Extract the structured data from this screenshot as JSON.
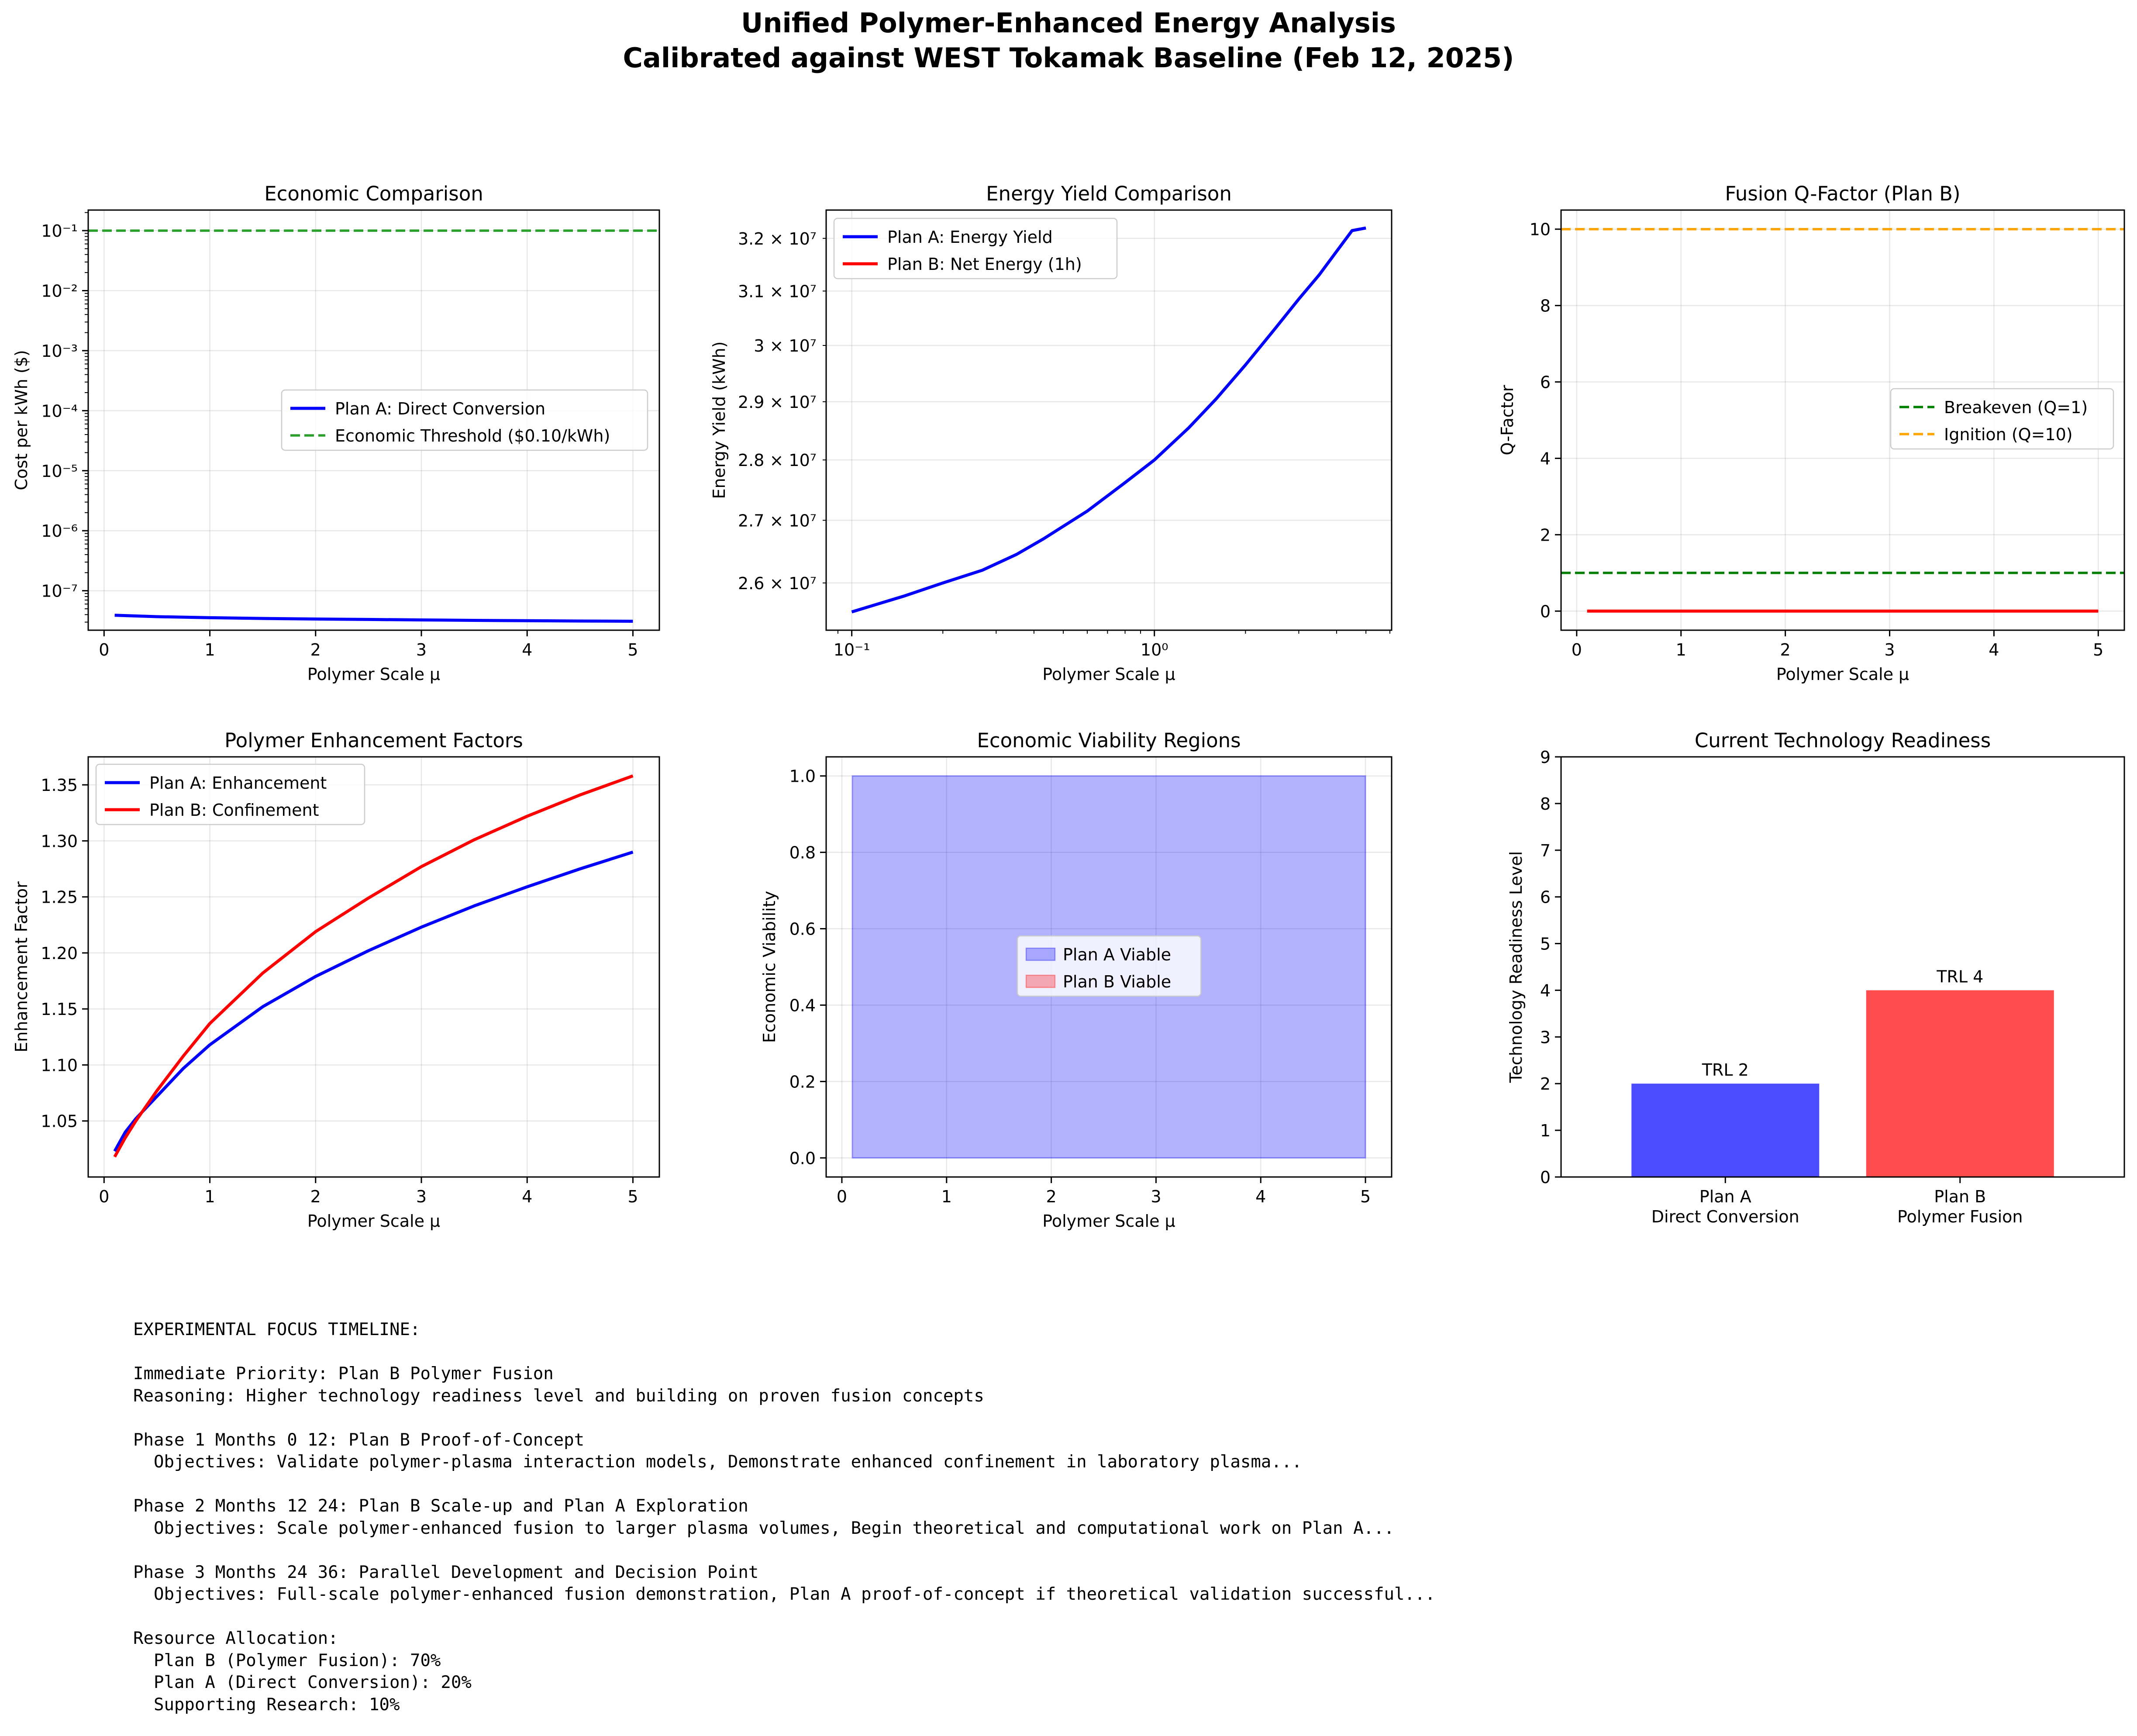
{
  "figure": {
    "title_line1": "Unified Polymer-Enhanced Energy Analysis",
    "title_line2": "Calibrated against WEST Tokamak Baseline (Feb 12, 2025)"
  },
  "colors": {
    "blue": "#0000ff",
    "red": "#ff0000",
    "green": "#008000",
    "green_threshold": "#2ca02c",
    "orange": "#ffa500"
  },
  "chart_data": [
    {
      "id": "economic",
      "type": "line",
      "title": "Economic Comparison",
      "xlabel": "Polymer Scale μ",
      "ylabel": "Cost per kWh ($)",
      "yscale": "log",
      "xlim": [
        -0.15,
        5.25
      ],
      "ylim": [
        2.2e-08,
        0.22
      ],
      "xticks": [
        0,
        1,
        2,
        3,
        4,
        5
      ],
      "yticks": [
        -7,
        -6,
        -5,
        -4,
        -3,
        -2,
        -1
      ],
      "grid": true,
      "legend": "center-right",
      "series": [
        {
          "name": "Plan A: Direct Conversion",
          "color": "#0000ff",
          "style": "solid",
          "x": [
            0.1,
            0.5,
            1,
            1.5,
            2,
            2.5,
            3,
            3.5,
            4,
            4.5,
            5
          ],
          "y": [
            3.9e-08,
            3.7e-08,
            3.55e-08,
            3.45e-08,
            3.38e-08,
            3.32e-08,
            3.26e-08,
            3.21e-08,
            3.17e-08,
            3.13e-08,
            3.1e-08
          ]
        },
        {
          "name": "Economic Threshold ($0.10/kWh)",
          "color": "#2ca02c",
          "style": "dashed",
          "x": [
            -0.15,
            5.25
          ],
          "y": [
            0.1,
            0.1
          ]
        }
      ]
    },
    {
      "id": "energy",
      "type": "line",
      "title": "Energy Yield Comparison",
      "xlabel": "Polymer Scale μ",
      "ylabel": "Energy Yield (kWh)",
      "xscale": "log",
      "yscale": "log",
      "xlim": [
        0.0823,
        6.08
      ],
      "ylim": [
        25270000.0,
        32550000.0
      ],
      "xticks": [
        -1,
        0
      ],
      "yticks": [
        2.6,
        2.7,
        2.8,
        2.9,
        3.0,
        3.1,
        3.2
      ],
      "grid": true,
      "legend": "top-left",
      "series": [
        {
          "name": "Plan A: Energy Yield",
          "color": "#0000ff",
          "style": "solid",
          "x": [
            0.1,
            0.15,
            0.2,
            0.27,
            0.35,
            0.43,
            0.6,
            0.8,
            1.0,
            1.3,
            1.6,
            2.0,
            2.5,
            3.0,
            3.5,
            4.0,
            4.5,
            5.0
          ],
          "y": [
            25550000.0,
            25800000.0,
            26000000.0,
            26200000.0,
            26450000.0,
            26700000.0,
            27150000.0,
            27620000.0,
            28000000.0,
            28550000.0,
            29050000.0,
            29650000.0,
            30300000.0,
            30850000.0,
            31300000.0,
            31750000.0,
            32150000.0,
            32200000.0
          ]
        },
        {
          "name": "Plan B: Net Energy (1h)",
          "color": "#ff0000",
          "style": "solid",
          "x": [],
          "y": []
        }
      ]
    },
    {
      "id": "qfactor",
      "type": "line",
      "title": "Fusion Q-Factor (Plan B)",
      "xlabel": "Polymer Scale μ",
      "ylabel": "Q-Factor",
      "xlim": [
        -0.15,
        5.25
      ],
      "ylim": [
        -0.5,
        10.5
      ],
      "xticks": [
        0,
        1,
        2,
        3,
        4,
        5
      ],
      "yticks": [
        0,
        2,
        4,
        6,
        8,
        10
      ],
      "grid": true,
      "legend": "center-right",
      "series": [
        {
          "name": "Breakeven (Q=1)",
          "color": "#008000",
          "style": "dashed",
          "x": [
            -0.15,
            5.25
          ],
          "y": [
            1,
            1
          ]
        },
        {
          "name": "Ignition (Q=10)",
          "color": "#ffa500",
          "style": "dashed",
          "x": [
            -0.15,
            5.25
          ],
          "y": [
            10,
            10
          ]
        },
        {
          "name": "",
          "color": "#ff0000",
          "style": "solid",
          "x": [
            0.1,
            5.0
          ],
          "y": [
            0,
            0
          ]
        }
      ]
    },
    {
      "id": "enhancement",
      "type": "line",
      "title": "Polymer Enhancement Factors",
      "xlabel": "Polymer Scale μ",
      "ylabel": "Enhancement Factor",
      "xlim": [
        -0.15,
        5.25
      ],
      "ylim": [
        1.0,
        1.375
      ],
      "xticks": [
        0,
        1,
        2,
        3,
        4,
        5
      ],
      "yticks": [
        1.05,
        1.1,
        1.15,
        1.2,
        1.25,
        1.3,
        1.35
      ],
      "grid": true,
      "legend": "top-left",
      "series": [
        {
          "name": "Plan A: Enhancement",
          "color": "#0000ff",
          "style": "solid",
          "x": [
            0.1,
            0.2,
            0.3,
            0.5,
            0.75,
            1.0,
            1.5,
            2.0,
            2.5,
            3.0,
            3.5,
            4.0,
            4.5,
            5.0
          ],
          "y": [
            1.023,
            1.04,
            1.052,
            1.072,
            1.097,
            1.118,
            1.152,
            1.179,
            1.202,
            1.223,
            1.242,
            1.259,
            1.275,
            1.29
          ]
        },
        {
          "name": "Plan B: Confinement",
          "color": "#ff0000",
          "style": "solid",
          "x": [
            0.1,
            0.2,
            0.3,
            0.5,
            0.75,
            1.0,
            1.5,
            2.0,
            2.5,
            3.0,
            3.5,
            4.0,
            4.5,
            5.0
          ],
          "y": [
            1.018,
            1.035,
            1.05,
            1.077,
            1.108,
            1.137,
            1.182,
            1.219,
            1.249,
            1.277,
            1.301,
            1.322,
            1.341,
            1.358
          ]
        }
      ]
    },
    {
      "id": "viability",
      "type": "area",
      "title": "Economic Viability Regions",
      "xlabel": "Polymer Scale μ",
      "ylabel": "Economic Viability",
      "xlim": [
        -0.15,
        5.25
      ],
      "ylim": [
        -0.05,
        1.05
      ],
      "xticks": [
        0,
        1,
        2,
        3,
        4,
        5
      ],
      "yticks": [
        0.0,
        0.2,
        0.4,
        0.6,
        0.8,
        1.0
      ],
      "grid": true,
      "legend": "center",
      "series": [
        {
          "name": "Plan A Viable",
          "color": "#0000ff",
          "x": [
            0.1,
            5.0
          ],
          "y": [
            1.0,
            1.0
          ]
        },
        {
          "name": "Plan B Viable",
          "color": "#ff0000",
          "x": [
            0.1,
            5.0
          ],
          "y": [
            0.0,
            0.0
          ]
        }
      ]
    },
    {
      "id": "trl",
      "type": "bar",
      "title": "Current Technology Readiness",
      "ylabel": "Technology Readiness Level",
      "ylim": [
        0,
        9
      ],
      "yticks": [
        0,
        1,
        2,
        3,
        4,
        5,
        6,
        7,
        8,
        9
      ],
      "grid": false,
      "categories": [
        [
          "Plan A",
          "Direct Conversion"
        ],
        [
          "Plan B",
          "Polymer Fusion"
        ]
      ],
      "values": [
        2,
        4
      ],
      "labels": [
        "TRL 2",
        "TRL 4"
      ],
      "colors": [
        "#0000ff",
        "#ff0000"
      ]
    }
  ],
  "timeline": {
    "heading": "EXPERIMENTAL FOCUS TIMELINE:",
    "priority": "Immediate Priority: Plan B Polymer Fusion",
    "reasoning": "Reasoning: Higher technology readiness level and building on proven fusion concepts",
    "phase1_title": "Phase 1 Months 0 12: Plan B Proof-of-Concept",
    "phase1_obj": "  Objectives: Validate polymer-plasma interaction models, Demonstrate enhanced confinement in laboratory plasma...",
    "phase2_title": "Phase 2 Months 12 24: Plan B Scale-up and Plan A Exploration",
    "phase2_obj": "  Objectives: Scale polymer-enhanced fusion to larger plasma volumes, Begin theoretical and computational work on Plan A...",
    "phase3_title": "Phase 3 Months 24 36: Parallel Development and Decision Point",
    "phase3_obj": "  Objectives: Full-scale polymer-enhanced fusion demonstration, Plan A proof-of-concept if theoretical validation successful...",
    "resources_heading": "Resource Allocation:",
    "res_b": "  Plan B (Polymer Fusion): 70%",
    "res_a": "  Plan A (Direct Conversion): 20%",
    "res_support": "  Supporting Research: 10%"
  }
}
